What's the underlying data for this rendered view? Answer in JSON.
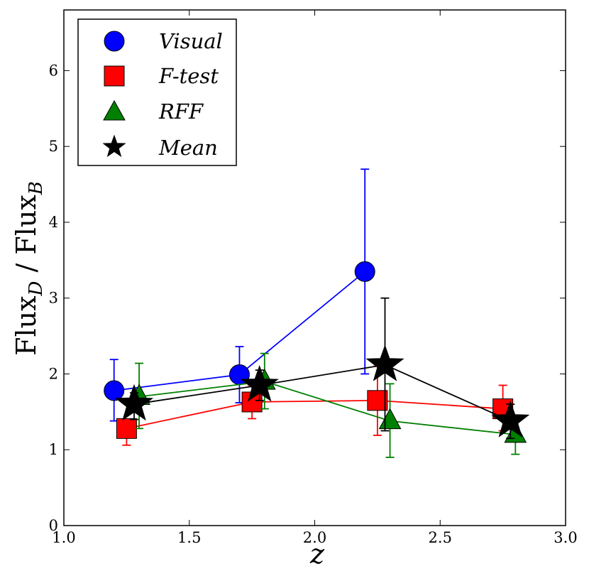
{
  "chart_data": {
    "type": "line",
    "title": "",
    "xlabel": "z",
    "ylabel": {
      "main": "Flux",
      "sub_num": "D",
      "sep": " / ",
      "main2": "Flux",
      "sub_den": "B"
    },
    "xlim": [
      1.0,
      3.0
    ],
    "ylim": [
      0,
      6.8
    ],
    "xticks": [
      "1.0",
      "1.5",
      "2.0",
      "2.5",
      "3.0"
    ],
    "yticks": [
      "0",
      "1",
      "2",
      "3",
      "4",
      "5",
      "6"
    ],
    "xtick_values": [
      1.0,
      1.5,
      2.0,
      2.5,
      3.0
    ],
    "ytick_values": [
      0,
      1,
      2,
      3,
      4,
      5,
      6
    ],
    "legend_position": "top-left",
    "series": [
      {
        "name": "Visual",
        "marker": "circle",
        "color": "#0000ff",
        "x": [
          1.2,
          1.7,
          2.2
        ],
        "y": [
          1.78,
          1.99,
          3.35
        ],
        "err_low": [
          1.38,
          1.62,
          2.0
        ],
        "err_high": [
          2.19,
          2.36,
          4.7
        ]
      },
      {
        "name": "F-test",
        "marker": "square",
        "color": "#ff0000",
        "x": [
          1.25,
          1.75,
          2.25,
          2.75
        ],
        "y": [
          1.28,
          1.63,
          1.65,
          1.54
        ],
        "err_low": [
          1.06,
          1.41,
          1.19,
          1.25
        ],
        "err_high": [
          1.4,
          1.85,
          2.1,
          1.85
        ]
      },
      {
        "name": "RFF",
        "marker": "triangle",
        "color": "#008000",
        "x": [
          1.3,
          1.8,
          2.3,
          2.8
        ],
        "y": [
          1.7,
          1.9,
          1.38,
          1.2
        ],
        "err_low": [
          1.28,
          1.54,
          0.9,
          0.94
        ],
        "err_high": [
          2.14,
          2.27,
          1.87,
          1.44
        ]
      },
      {
        "name": "Mean",
        "marker": "star",
        "color": "#000000",
        "x": [
          1.28,
          1.78,
          2.28,
          2.78
        ],
        "y": [
          1.6,
          1.85,
          2.12,
          1.38
        ],
        "err_low": [
          1.4,
          1.65,
          1.25,
          1.15
        ],
        "err_high": [
          1.75,
          2.05,
          3.0,
          1.6
        ]
      }
    ]
  }
}
